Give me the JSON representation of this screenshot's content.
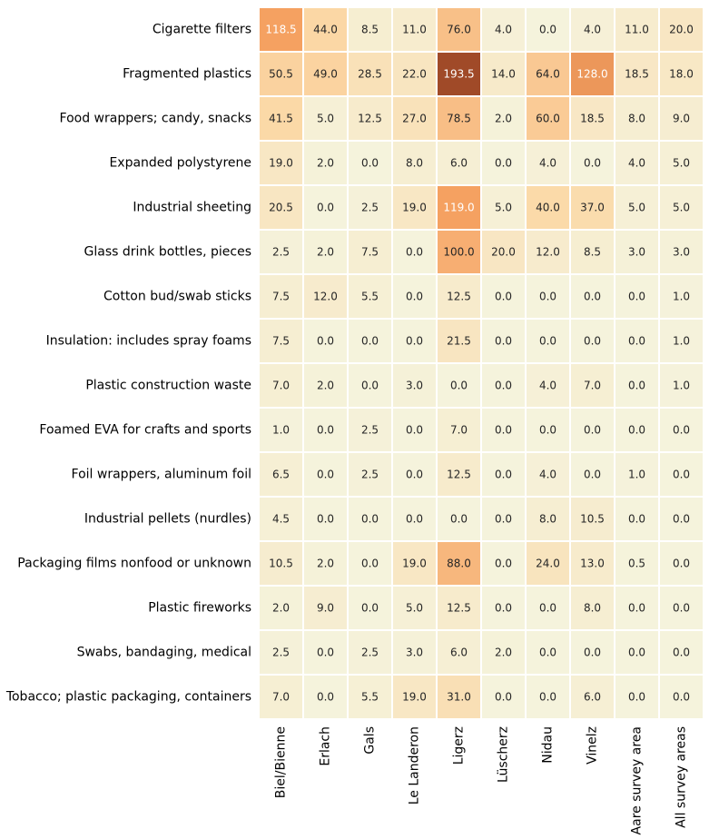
{
  "chart_data": {
    "type": "heatmap",
    "title": "",
    "xlabel": "",
    "ylabel": "",
    "rows": [
      "Cigarette filters",
      "Fragmented plastics",
      "Food wrappers; candy, snacks",
      "Expanded polystyrene",
      "Industrial sheeting",
      "Glass drink bottles, pieces",
      "Cotton bud/swab sticks",
      "Insulation: includes spray foams",
      "Plastic construction waste",
      "Foamed EVA for crafts and sports",
      "Foil wrappers, aluminum foil",
      "Industrial pellets (nurdles)",
      "Packaging films nonfood or unknown",
      "Plastic fireworks",
      "Swabs, bandaging, medical",
      "Tobacco; plastic packaging, containers"
    ],
    "columns": [
      "Biel/Bienne",
      "Erlach",
      "Gals",
      "Le Landeron",
      "Ligerz",
      "Lüscherz",
      "Nidau",
      "Vinelz",
      "Aare survey area",
      "All survey areas"
    ],
    "values": [
      [
        118.5,
        44.0,
        8.5,
        11.0,
        76.0,
        4.0,
        0.0,
        4.0,
        11.0,
        20.0
      ],
      [
        50.5,
        49.0,
        28.5,
        22.0,
        193.5,
        14.0,
        64.0,
        128.0,
        18.5,
        18.0
      ],
      [
        41.5,
        5.0,
        12.5,
        27.0,
        78.5,
        2.0,
        60.0,
        18.5,
        8.0,
        9.0
      ],
      [
        19.0,
        2.0,
        0.0,
        8.0,
        6.0,
        0.0,
        4.0,
        0.0,
        4.0,
        5.0
      ],
      [
        20.5,
        0.0,
        2.5,
        19.0,
        119.0,
        5.0,
        40.0,
        37.0,
        5.0,
        5.0
      ],
      [
        2.5,
        2.0,
        7.5,
        0.0,
        100.0,
        20.0,
        12.0,
        8.5,
        3.0,
        3.0
      ],
      [
        7.5,
        12.0,
        5.5,
        0.0,
        12.5,
        0.0,
        0.0,
        0.0,
        0.0,
        1.0
      ],
      [
        7.5,
        0.0,
        0.0,
        0.0,
        21.5,
        0.0,
        0.0,
        0.0,
        0.0,
        1.0
      ],
      [
        7.0,
        2.0,
        0.0,
        3.0,
        0.0,
        0.0,
        4.0,
        7.0,
        0.0,
        1.0
      ],
      [
        1.0,
        0.0,
        2.5,
        0.0,
        7.0,
        0.0,
        0.0,
        0.0,
        0.0,
        0.0
      ],
      [
        6.5,
        0.0,
        2.5,
        0.0,
        12.5,
        0.0,
        4.0,
        0.0,
        1.0,
        0.0
      ],
      [
        4.5,
        0.0,
        0.0,
        0.0,
        0.0,
        0.0,
        8.0,
        10.5,
        0.0,
        0.0
      ],
      [
        10.5,
        2.0,
        0.0,
        19.0,
        88.0,
        0.0,
        24.0,
        13.0,
        0.5,
        0.0
      ],
      [
        2.0,
        9.0,
        0.0,
        5.0,
        12.5,
        0.0,
        0.0,
        8.0,
        0.0,
        0.0
      ],
      [
        2.5,
        0.0,
        2.5,
        3.0,
        6.0,
        2.0,
        0.0,
        0.0,
        0.0,
        0.0
      ],
      [
        7.0,
        0.0,
        5.5,
        19.0,
        31.0,
        0.0,
        0.0,
        6.0,
        0.0,
        0.0
      ]
    ],
    "value_format": "0.0",
    "color_range": [
      0,
      193.5
    ],
    "colors": {
      "low": "#f5f3dc",
      "mid": "#fbd8a6",
      "high": "#f5a060",
      "max": "#a04a28",
      "cell_border": "#ffffff",
      "text_dark": "#262626",
      "text_light": "#ffffff"
    },
    "grid": false,
    "legend": "none"
  }
}
